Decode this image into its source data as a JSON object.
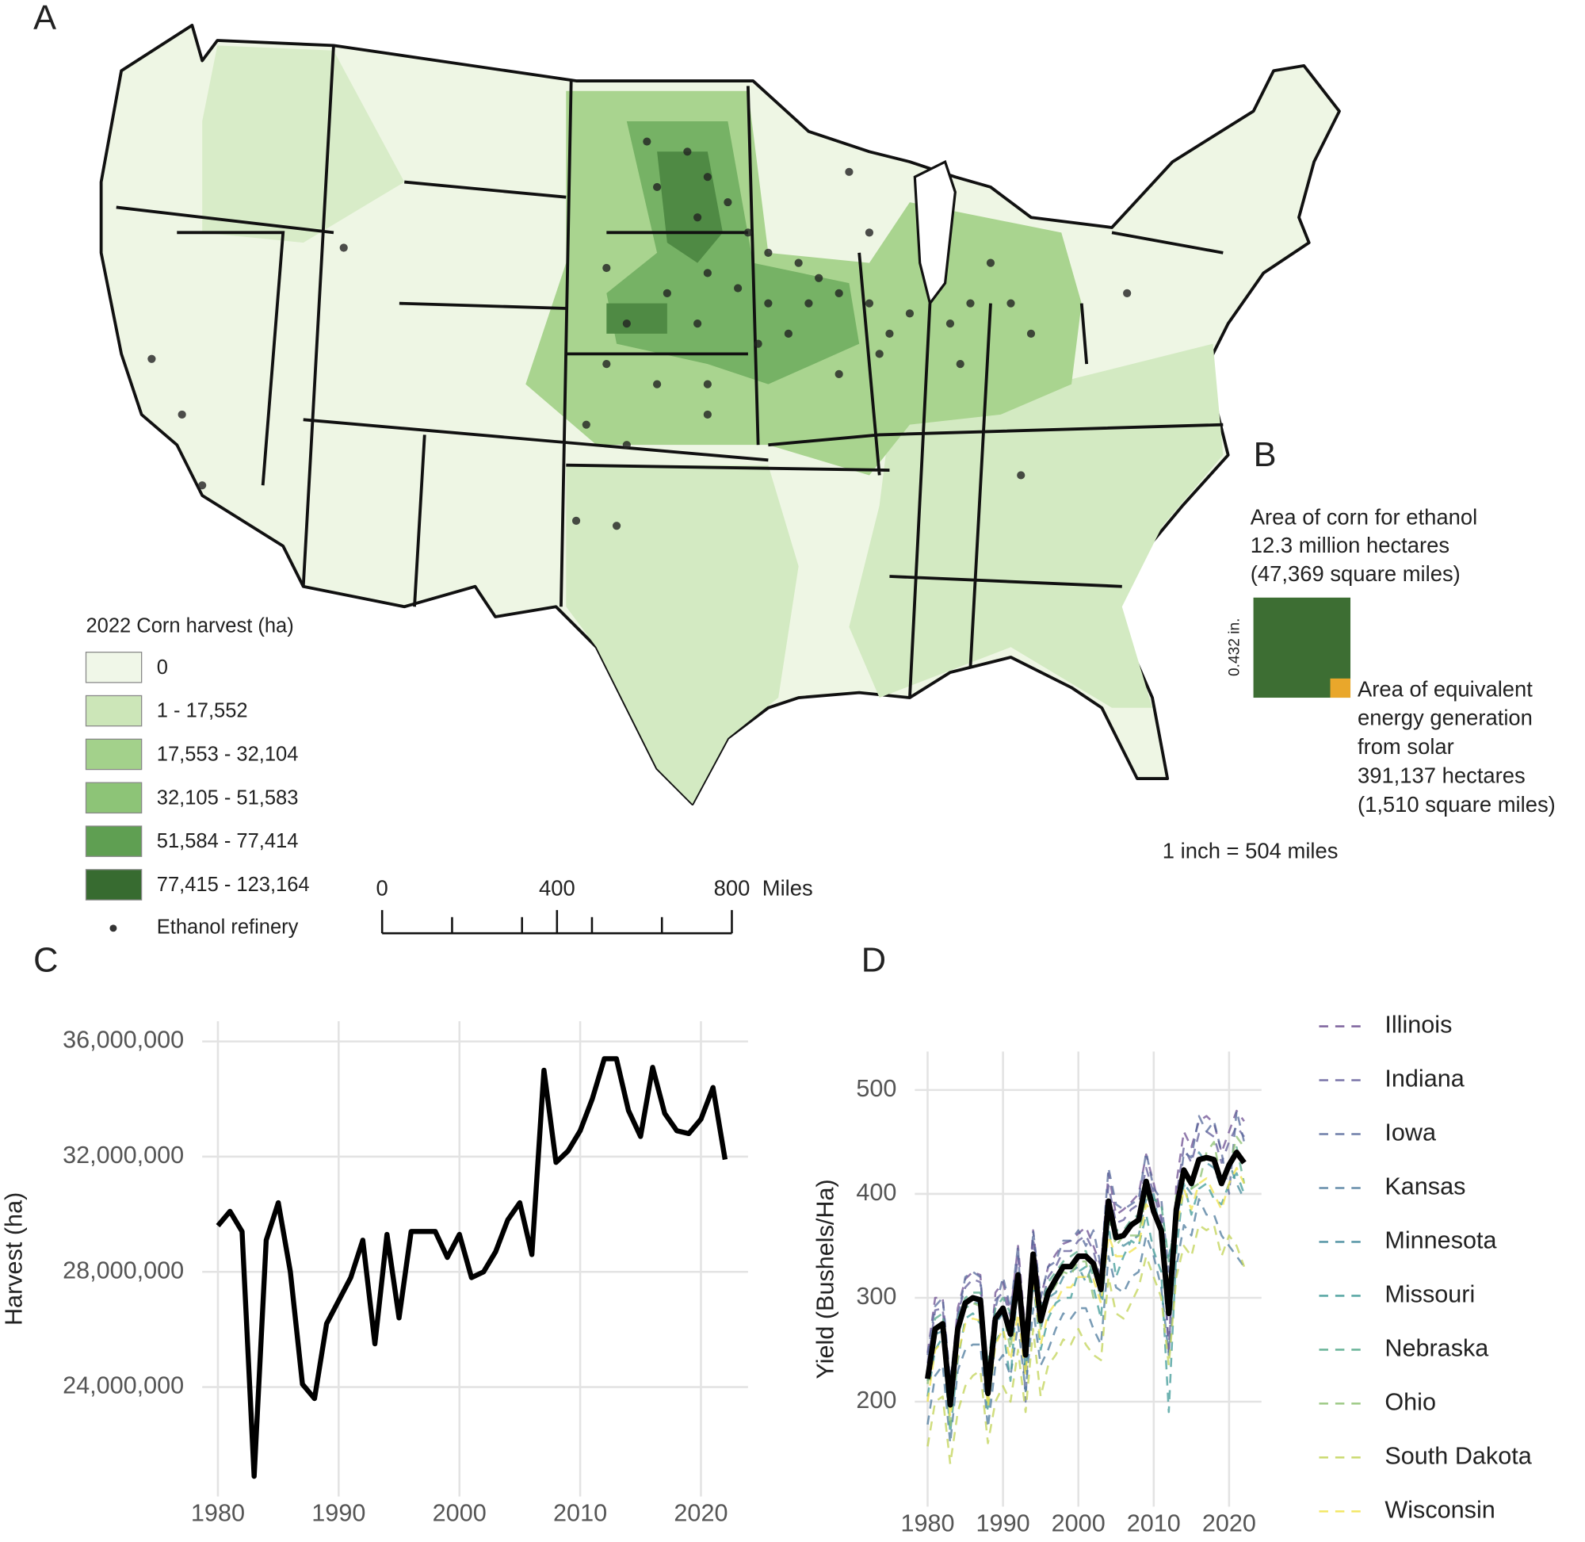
{
  "chart_data": [
    {
      "type": "map",
      "panel": "A",
      "legend_title": "2022 Corn harvest (ha)",
      "classes": [
        {
          "label": "0",
          "color": "#f0f7e8"
        },
        {
          "label": "1 - 17,552",
          "color": "#cce6b8"
        },
        {
          "label": "17,553 - 32,104",
          "color": "#a3d18b"
        },
        {
          "label": "32,105 - 51,583",
          "color": "#8dc477"
        },
        {
          "label": "51,584 - 77,414",
          "color": "#5f9f52"
        },
        {
          "label": "77,415 - 123,164",
          "color": "#376b30"
        }
      ],
      "refinery_label": "Ethanol refinery",
      "scale_ticks": [
        0,
        400,
        800
      ],
      "scale_unit": "Miles"
    },
    {
      "type": "area-comparison",
      "panel": "B",
      "title_lines": [
        "Area of corn for ethanol",
        "12.3 million hectares",
        "(47,369 square miles)"
      ],
      "side_label": "0.432 in.",
      "inset_lines": [
        "Area of equivalent",
        "energy generation",
        "from solar",
        "391,137 hectares",
        "(1,510 square miles)"
      ],
      "scale_note": "1 inch = 504 miles",
      "color": "#3d6e33",
      "inset_color": "#e9a72b"
    },
    {
      "type": "line",
      "panel": "C",
      "ylabel": "Harvest (ha)",
      "color": "#000000",
      "x": [
        1980,
        1981,
        1982,
        1983,
        1984,
        1985,
        1986,
        1987,
        1988,
        1989,
        1990,
        1991,
        1992,
        1993,
        1994,
        1995,
        1996,
        1997,
        1998,
        1999,
        2000,
        2001,
        2002,
        2003,
        2004,
        2005,
        2006,
        2007,
        2008,
        2009,
        2010,
        2011,
        2012,
        2013,
        2014,
        2015,
        2016,
        2017,
        2018,
        2019,
        2020,
        2021,
        2022
      ],
      "values": [
        29600000,
        30100000,
        29400000,
        20900000,
        29100000,
        30400000,
        28000000,
        24100000,
        23600000,
        26200000,
        27000000,
        27800000,
        29100000,
        25500000,
        29300000,
        26400000,
        29400000,
        29400000,
        29400000,
        28500000,
        29300000,
        27800000,
        28000000,
        28700000,
        29800000,
        30400000,
        28600000,
        35000000,
        31800000,
        32200000,
        32900000,
        34000000,
        35400000,
        35400000,
        33600000,
        32700000,
        35100000,
        33500000,
        32900000,
        32800000,
        33300000,
        34400000,
        31900000
      ],
      "xlim": [
        1978.7,
        2023.9
      ],
      "xticks": [
        1980,
        1990,
        2000,
        2010,
        2020
      ],
      "ylim": [
        20200000,
        36700000
      ],
      "yticks": [
        {
          "value": 24000000,
          "label": "24,000,000"
        },
        {
          "value": 28000000,
          "label": "28,000,000"
        },
        {
          "value": 32000000,
          "label": "32,000,000"
        },
        {
          "value": 36000000,
          "label": "36,000,000"
        }
      ],
      "grid": true
    },
    {
      "type": "line",
      "panel": "D",
      "ylabel": "Yield (Bushels/Ha)",
      "x": [
        1980,
        1981,
        1982,
        1983,
        1984,
        1985,
        1986,
        1987,
        1988,
        1989,
        1990,
        1991,
        1992,
        1993,
        1994,
        1995,
        1996,
        1997,
        1998,
        1999,
        2000,
        2001,
        2002,
        2003,
        2004,
        2005,
        2006,
        2007,
        2008,
        2009,
        2010,
        2011,
        2012,
        2013,
        2014,
        2015,
        2016,
        2017,
        2018,
        2019,
        2020,
        2021,
        2022
      ],
      "series": [
        {
          "name": "Illinois",
          "color": "#6d4f91",
          "values": [
            247,
            300,
            300,
            215,
            290,
            318,
            325,
            322,
            220,
            305,
            315,
            285,
            350,
            265,
            365,
            300,
            330,
            342,
            352,
            355,
            362,
            368,
            350,
            330,
            420,
            380,
            385,
            392,
            400,
            438,
            410,
            380,
            250,
            410,
            460,
            445,
            470,
            475,
            468,
            440,
            460,
            480,
            470
          ]
        },
        {
          "name": "Indiana",
          "color": "#625c99",
          "values": [
            237,
            288,
            290,
            205,
            285,
            310,
            318,
            315,
            215,
            298,
            305,
            282,
            340,
            258,
            358,
            290,
            320,
            330,
            345,
            345,
            355,
            360,
            345,
            318,
            408,
            372,
            375,
            385,
            390,
            425,
            400,
            375,
            245,
            398,
            445,
            430,
            458,
            460,
            455,
            430,
            450,
            465,
            455
          ]
        },
        {
          "name": "Iowa",
          "color": "#57699b",
          "values": [
            245,
            292,
            300,
            220,
            280,
            320,
            325,
            320,
            225,
            290,
            320,
            290,
            350,
            200,
            365,
            300,
            330,
            335,
            355,
            355,
            365,
            350,
            365,
            330,
            425,
            390,
            385,
            390,
            395,
            440,
            405,
            395,
            325,
            380,
            440,
            435,
            475,
            460,
            470,
            440,
            400,
            480,
            450
          ]
        },
        {
          "name": "Kansas",
          "color": "#4c7a9c",
          "values": [
            178,
            225,
            235,
            160,
            230,
            250,
            255,
            255,
            175,
            235,
            245,
            225,
            275,
            210,
            290,
            235,
            250,
            270,
            285,
            280,
            290,
            290,
            270,
            255,
            340,
            310,
            305,
            320,
            325,
            360,
            340,
            310,
            245,
            330,
            370,
            360,
            395,
            380,
            380,
            360,
            350,
            340,
            330
          ]
        },
        {
          "name": "Minnesota",
          "color": "#43899b",
          "values": [
            220,
            265,
            268,
            195,
            265,
            290,
            295,
            295,
            205,
            275,
            285,
            260,
            305,
            230,
            335,
            270,
            300,
            305,
            320,
            325,
            330,
            315,
            335,
            300,
            375,
            355,
            350,
            355,
            360,
            395,
            400,
            355,
            340,
            375,
            410,
            400,
            440,
            430,
            425,
            405,
            430,
            410,
            395
          ]
        },
        {
          "name": "Missouri",
          "color": "#3f9a97",
          "values": [
            205,
            250,
            262,
            170,
            240,
            280,
            285,
            275,
            190,
            258,
            270,
            220,
            320,
            230,
            315,
            250,
            280,
            295,
            300,
            300,
            325,
            330,
            310,
            280,
            370,
            320,
            340,
            355,
            350,
            380,
            345,
            325,
            190,
            345,
            410,
            380,
            405,
            410,
            395,
            390,
            410,
            420,
            400
          ]
        },
        {
          "name": "Nebraska",
          "color": "#55aa8a",
          "values": [
            232,
            280,
            285,
            210,
            280,
            300,
            305,
            305,
            235,
            290,
            300,
            285,
            325,
            260,
            345,
            290,
            315,
            325,
            335,
            340,
            345,
            345,
            320,
            320,
            390,
            365,
            365,
            375,
            380,
            410,
            395,
            390,
            335,
            380,
            420,
            405,
            430,
            435,
            430,
            415,
            430,
            445,
            410
          ]
        },
        {
          "name": "Ohio",
          "color": "#8cc070",
          "values": [
            217,
            270,
            268,
            175,
            268,
            290,
            295,
            292,
            200,
            280,
            288,
            250,
            318,
            245,
            340,
            270,
            300,
            312,
            325,
            322,
            335,
            335,
            300,
            310,
            380,
            350,
            360,
            360,
            360,
            400,
            380,
            365,
            305,
            400,
            420,
            405,
            410,
            440,
            450,
            410,
            425,
            455,
            445
          ]
        },
        {
          "name": "South Dakota",
          "color": "#c2d356",
          "values": [
            157,
            200,
            205,
            140,
            190,
            215,
            225,
            230,
            160,
            200,
            215,
            200,
            250,
            190,
            270,
            205,
            235,
            245,
            260,
            255,
            270,
            255,
            245,
            240,
            320,
            285,
            280,
            295,
            310,
            340,
            320,
            300,
            235,
            320,
            350,
            340,
            370,
            365,
            370,
            340,
            360,
            350,
            330
          ]
        },
        {
          "name": "Wisconsin",
          "color": "#f2e34b",
          "values": [
            200,
            250,
            258,
            185,
            245,
            275,
            280,
            278,
            195,
            255,
            270,
            240,
            285,
            225,
            320,
            255,
            285,
            295,
            310,
            310,
            320,
            320,
            318,
            295,
            360,
            340,
            340,
            345,
            350,
            390,
            380,
            365,
            310,
            365,
            405,
            385,
            410,
            415,
            400,
            385,
            410,
            425,
            410
          ]
        },
        {
          "color": "#000000",
          "values": [
            222,
            270,
            275,
            197,
            270,
            295,
            300,
            298,
            208,
            280,
            290,
            265,
            322,
            245,
            342,
            278,
            305,
            318,
            330,
            330,
            340,
            340,
            333,
            308,
            393,
            358,
            360,
            370,
            375,
            412,
            383,
            365,
            285,
            385,
            423,
            410,
            433,
            435,
            433,
            410,
            428,
            440,
            430
          ]
        }
      ],
      "xlim": [
        1978.3,
        2024.3
      ],
      "xticks": [
        1980,
        1990,
        2000,
        2010,
        2020
      ],
      "ylim": [
        99,
        537
      ],
      "yticks": [
        200,
        300,
        400,
        500
      ],
      "grid": true
    }
  ]
}
